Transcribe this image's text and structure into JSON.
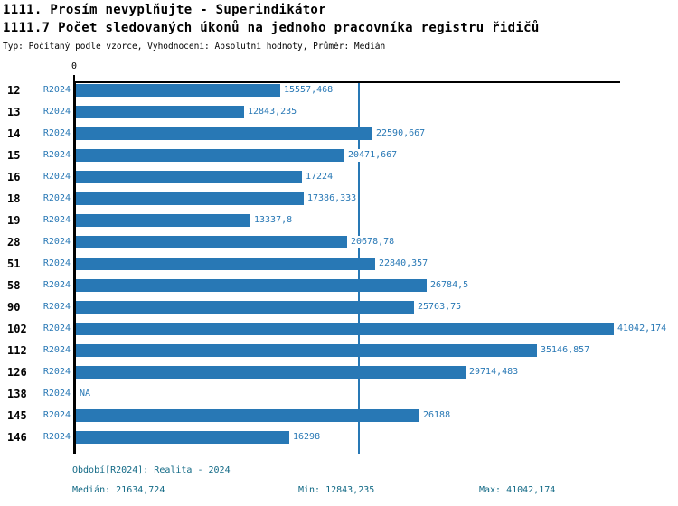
{
  "header": {
    "title1": "1111. Prosím nevyplňujte - Superindikátor",
    "title2": "1111.7 Počet sledovaných úkonů na jednoho pracovníka registru řidičů",
    "subtitle": "Typ: Počítaný podle vzorce, Vyhodnocení: Absolutní hodnoty, Průměr: Medián"
  },
  "chart_data": {
    "type": "bar",
    "orientation": "horizontal",
    "title": "1111.7 Počet sledovaných úkonů na jednoho pracovníka registru řidičů",
    "series_label": "R2024",
    "axis_zero_label": "0",
    "xlim": [
      0,
      41042.174
    ],
    "categories": [
      "12",
      "13",
      "14",
      "15",
      "16",
      "18",
      "19",
      "28",
      "51",
      "58",
      "90",
      "102",
      "112",
      "126",
      "138",
      "145",
      "146"
    ],
    "values": [
      15557.468,
      12843.235,
      22590.667,
      20471.667,
      17224,
      17386.333,
      13337.8,
      20678.78,
      22840.357,
      26784.5,
      25763.75,
      41042.174,
      35146.857,
      29714.483,
      null,
      26188,
      16298
    ],
    "value_labels": [
      "15557,468",
      "12843,235",
      "22590,667",
      "20471,667",
      "17224",
      "17386,333",
      "13337,8",
      "20678,78",
      "22840,357",
      "26784,5",
      "25763,75",
      "41042,174",
      "35146,857",
      "29714,483",
      "NA",
      "26188",
      "16298"
    ],
    "median_value": 21634.724,
    "grid": false,
    "legend": false
  },
  "footer": {
    "period": "Období[R2024]: Realita - 2024",
    "median": "Medián: 21634,724",
    "min": "Min: 12843,235",
    "max": "Max: 41042,174"
  },
  "colors": {
    "bar_blue": "#2878b5",
    "label_blue": "#2878b5",
    "median_line_blue": "#2878b5",
    "footer_teal": "#136a86",
    "axis_black": "#000000"
  }
}
